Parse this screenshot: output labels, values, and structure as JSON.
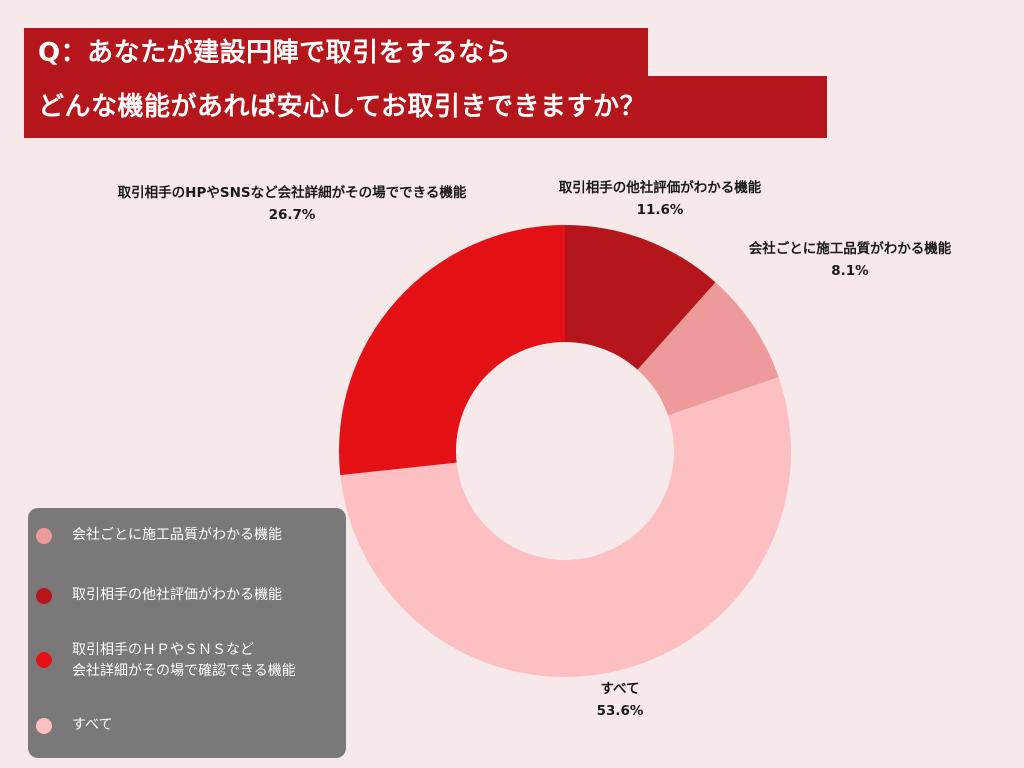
{
  "title": {
    "line1": "Q：あなたが建設円陣で取引をするなら",
    "line2": "どんな機能があれば安心してお取引きできますか？"
  },
  "colors": {
    "background": "#f7e9ea",
    "title_bg": "#b5161c",
    "legend_bg": "#7a7878"
  },
  "chart_data": {
    "type": "pie",
    "donut": true,
    "slices": [
      {
        "label": "取引相手の他社評価がわかる機能",
        "value": 11.6,
        "display": "11.6%",
        "color": "#b5161c"
      },
      {
        "label": "会社ごとに施工品質がわかる機能",
        "value": 8.1,
        "display": "8.1%",
        "color": "#ee9a9b"
      },
      {
        "label": "すべて",
        "value": 53.6,
        "display": "53.6%",
        "color": "#fdbfc1"
      },
      {
        "label": "取引相手のHPやSNSなど会社詳細がその場でできる機能",
        "value": 26.7,
        "display": "26.7%",
        "color": "#e31115"
      }
    ],
    "legend": {
      "placement": "bottom-left",
      "items": [
        {
          "lines": [
            "会社ごとに施工品質がわかる機能"
          ],
          "color": "#ee9a9b"
        },
        {
          "lines": [
            "取引相手の他社評価がわかる機能"
          ],
          "color": "#b5161c"
        },
        {
          "lines": [
            "取引相手のＨＰやＳＮＳなど",
            "会社詳細がその場で確認できる機能"
          ],
          "color": "#e31115"
        },
        {
          "lines": [
            "すべて"
          ],
          "color": "#fdbfc1"
        }
      ]
    }
  }
}
